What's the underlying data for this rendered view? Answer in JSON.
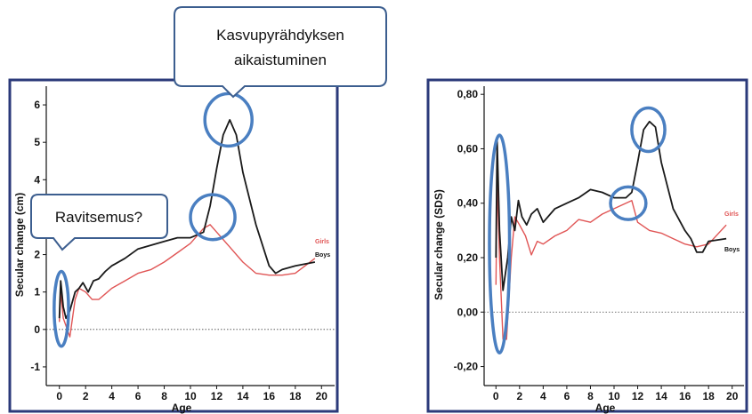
{
  "callouts": {
    "growth_spurt_line1": "Kasvupyrähdyksen",
    "growth_spurt_line2": "aikaistuminen",
    "nutrition": "Ravitsemus?"
  },
  "colors": {
    "boys": "#1a1a1a",
    "girls": "#e05555",
    "highlight": "#4a7fc1"
  },
  "chart_data": [
    {
      "type": "line",
      "title": "",
      "xlabel": "Age",
      "ylabel": "Secular change (cm)",
      "xlim": [
        -1,
        21
      ],
      "ylim": [
        -1.5,
        6.5
      ],
      "xticks": [
        "0",
        "2",
        "4",
        "6",
        "8",
        "10",
        "12",
        "14",
        "16",
        "18",
        "20"
      ],
      "yticks": [
        "-1",
        "0",
        "1",
        "2",
        "3",
        "4",
        "5",
        "6"
      ],
      "zero_line": true,
      "series": [
        {
          "name": "Boys",
          "x": [
            0,
            0.1,
            0.3,
            0.5,
            0.8,
            1.2,
            1.5,
            1.8,
            2.2,
            2.6,
            3,
            3.5,
            4,
            5,
            6,
            7,
            8,
            9,
            10,
            11,
            11.5,
            12,
            12.5,
            13,
            13.5,
            14,
            15,
            16,
            16.5,
            17,
            18,
            19.5
          ],
          "values": [
            0.3,
            1.3,
            0.6,
            0.3,
            0.5,
            1.0,
            1.1,
            1.25,
            1.0,
            1.3,
            1.35,
            1.55,
            1.7,
            1.9,
            2.15,
            2.25,
            2.35,
            2.45,
            2.45,
            2.6,
            3.3,
            4.3,
            5.2,
            5.6,
            5.2,
            4.2,
            2.8,
            1.7,
            1.5,
            1.6,
            1.7,
            1.8
          ]
        },
        {
          "name": "Girls",
          "x": [
            0,
            0.1,
            0.3,
            0.5,
            0.8,
            1.2,
            1.5,
            2,
            2.5,
            3,
            3.5,
            4,
            5,
            6,
            7,
            8,
            9,
            10,
            11,
            11.5,
            12,
            13,
            14,
            15,
            16,
            17,
            18,
            19.5
          ],
          "values": [
            0.2,
            1.0,
            0.3,
            0.1,
            -0.2,
            0.8,
            1.1,
            1.0,
            0.8,
            0.8,
            0.95,
            1.1,
            1.3,
            1.5,
            1.6,
            1.8,
            2.05,
            2.3,
            2.7,
            2.8,
            2.6,
            2.2,
            1.8,
            1.5,
            1.45,
            1.45,
            1.5,
            1.9
          ]
        }
      ],
      "legend": [
        "Girls",
        "Boys"
      ],
      "highlights": [
        {
          "x": 0.15,
          "y": 0.55,
          "rx": 0.55,
          "ry": 1.0
        },
        {
          "x": 11.7,
          "y": 3.0,
          "rx": 1.7,
          "ry": 0.6
        },
        {
          "x": 12.9,
          "y": 5.6,
          "rx": 1.8,
          "ry": 0.7
        }
      ]
    },
    {
      "type": "line",
      "title": "",
      "xlabel": "Age",
      "ylabel": "Secular change (SDS)",
      "xlim": [
        -1,
        21
      ],
      "ylim": [
        -0.27,
        0.83
      ],
      "xticks": [
        "0",
        "2",
        "4",
        "6",
        "8",
        "10",
        "12",
        "14",
        "16",
        "18",
        "20"
      ],
      "yticks": [
        "-0,20",
        "0,00",
        "0,20",
        "0,40",
        "0,60",
        "0,80"
      ],
      "ytick_values": [
        -0.2,
        0,
        0.2,
        0.4,
        0.6,
        0.8
      ],
      "zero_line": true,
      "series": [
        {
          "name": "Boys",
          "x": [
            0,
            0.1,
            0.3,
            0.6,
            1.0,
            1.3,
            1.6,
            1.9,
            2.2,
            2.6,
            3,
            3.5,
            4,
            5,
            6,
            7,
            8,
            9,
            10,
            11,
            11.5,
            12,
            12.5,
            13,
            13.5,
            14,
            15,
            16,
            16.5,
            17,
            17.5,
            18,
            19.5
          ],
          "values": [
            0.2,
            0.63,
            0.3,
            0.08,
            0.2,
            0.35,
            0.3,
            0.41,
            0.35,
            0.32,
            0.36,
            0.38,
            0.33,
            0.38,
            0.4,
            0.42,
            0.45,
            0.44,
            0.42,
            0.42,
            0.44,
            0.55,
            0.67,
            0.7,
            0.68,
            0.55,
            0.38,
            0.3,
            0.27,
            0.22,
            0.22,
            0.26,
            0.27
          ]
        },
        {
          "name": "Girls",
          "x": [
            0,
            0.1,
            0.3,
            0.6,
            0.9,
            1.3,
            1.6,
            2,
            2.5,
            3,
            3.5,
            4,
            5,
            6,
            7,
            8,
            9,
            10,
            11,
            11.5,
            12,
            13,
            14,
            15,
            16,
            17,
            18,
            19.5
          ],
          "values": [
            0.1,
            0.49,
            0.2,
            -0.1,
            -0.1,
            0.2,
            0.35,
            0.32,
            0.28,
            0.21,
            0.26,
            0.25,
            0.28,
            0.3,
            0.34,
            0.33,
            0.36,
            0.38,
            0.4,
            0.41,
            0.33,
            0.3,
            0.29,
            0.27,
            0.25,
            0.24,
            0.25,
            0.32
          ]
        }
      ],
      "legend": [
        "Girls",
        "Boys"
      ],
      "highlights": [
        {
          "x": 0.3,
          "y": 0.25,
          "rx": 0.85,
          "ry": 0.4
        },
        {
          "x": 11.2,
          "y": 0.4,
          "rx": 1.5,
          "ry": 0.06
        },
        {
          "x": 12.9,
          "y": 0.67,
          "rx": 1.4,
          "ry": 0.08
        }
      ]
    }
  ]
}
